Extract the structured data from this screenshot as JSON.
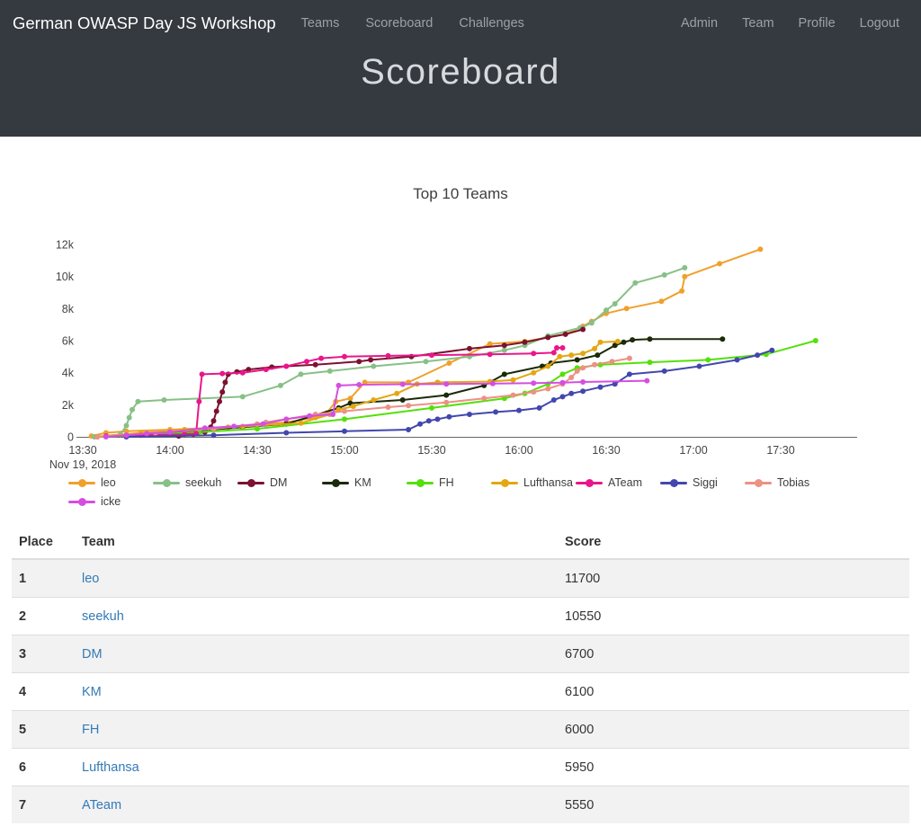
{
  "navbar": {
    "brand": "German OWASP Day JS Workshop",
    "left": [
      {
        "label": "Teams"
      },
      {
        "label": "Scoreboard"
      },
      {
        "label": "Challenges"
      }
    ],
    "right": [
      {
        "label": "Admin"
      },
      {
        "label": "Team"
      },
      {
        "label": "Profile"
      },
      {
        "label": "Logout"
      }
    ]
  },
  "header": {
    "title": "Scoreboard"
  },
  "chart_data": {
    "type": "line",
    "title": "Top 10 Teams",
    "xlabel": "",
    "ylabel": "",
    "x_axis": {
      "unit": "time of day, Nov 19 2018, minutes after 13:30",
      "tick_minutes": [
        0,
        30,
        60,
        90,
        120,
        150,
        180,
        210,
        240
      ],
      "tick_labels": [
        "13:30",
        "14:00",
        "14:30",
        "15:00",
        "15:30",
        "16:00",
        "16:30",
        "17:00",
        "17:30"
      ],
      "date_label": "Nov 19, 2018"
    },
    "y_axis": {
      "tick_values": [
        0,
        2000,
        4000,
        6000,
        8000,
        10000,
        12000
      ],
      "tick_labels": [
        "0",
        "2k",
        "4k",
        "6k",
        "8k",
        "10k",
        "12k"
      ],
      "max": 12000
    },
    "grid": false,
    "legend_position": "bottom",
    "series": [
      {
        "name": "leo",
        "color": "#f0a02c",
        "final_score": 11700,
        "points": [
          [
            3,
            50
          ],
          [
            8,
            250
          ],
          [
            15,
            350
          ],
          [
            30,
            450
          ],
          [
            50,
            600
          ],
          [
            70,
            900
          ],
          [
            80,
            1200
          ],
          [
            84,
            1500
          ],
          [
            87,
            2200
          ],
          [
            92,
            2400
          ],
          [
            97,
            3400
          ],
          [
            112,
            3400
          ],
          [
            126,
            4600
          ],
          [
            140,
            5800
          ],
          [
            152,
            5950
          ],
          [
            160,
            6200
          ],
          [
            166,
            6400
          ],
          [
            172,
            6900
          ],
          [
            175,
            7200
          ],
          [
            180,
            7700
          ],
          [
            187,
            8000
          ],
          [
            199,
            8450
          ],
          [
            206,
            9100
          ],
          [
            207,
            10000
          ],
          [
            219,
            10800
          ],
          [
            233,
            11700
          ]
        ]
      },
      {
        "name": "seekuh",
        "color": "#87c087",
        "final_score": 10550,
        "points": [
          [
            4,
            0
          ],
          [
            13,
            150
          ],
          [
            15,
            700
          ],
          [
            16,
            1200
          ],
          [
            17,
            1700
          ],
          [
            19,
            2200
          ],
          [
            28,
            2300
          ],
          [
            55,
            2500
          ],
          [
            68,
            3200
          ],
          [
            75,
            3900
          ],
          [
            85,
            4100
          ],
          [
            100,
            4400
          ],
          [
            118,
            4700
          ],
          [
            133,
            5000
          ],
          [
            145,
            5400
          ],
          [
            152,
            5700
          ],
          [
            160,
            6300
          ],
          [
            171,
            6800
          ],
          [
            175,
            7100
          ],
          [
            180,
            7900
          ],
          [
            183,
            8300
          ],
          [
            190,
            9600
          ],
          [
            200,
            10100
          ],
          [
            207,
            10550
          ]
        ]
      },
      {
        "name": "DM",
        "color": "#7c1230",
        "final_score": 6700,
        "points": [
          [
            33,
            50
          ],
          [
            38,
            150
          ],
          [
            42,
            300
          ],
          [
            44,
            600
          ],
          [
            45,
            1000
          ],
          [
            46,
            1600
          ],
          [
            47,
            2200
          ],
          [
            48,
            2800
          ],
          [
            49,
            3400
          ],
          [
            50,
            3900
          ],
          [
            53,
            4050
          ],
          [
            57,
            4200
          ],
          [
            65,
            4350
          ],
          [
            80,
            4500
          ],
          [
            95,
            4700
          ],
          [
            99,
            4800
          ],
          [
            113,
            5000
          ],
          [
            133,
            5500
          ],
          [
            145,
            5700
          ],
          [
            152,
            5900
          ],
          [
            160,
            6200
          ],
          [
            166,
            6400
          ],
          [
            172,
            6700
          ]
        ]
      },
      {
        "name": "KM",
        "color": "#1b2a08",
        "final_score": 6100,
        "points": [
          [
            5,
            0
          ],
          [
            25,
            200
          ],
          [
            40,
            400
          ],
          [
            55,
            600
          ],
          [
            70,
            800
          ],
          [
            88,
            1800
          ],
          [
            92,
            2100
          ],
          [
            110,
            2300
          ],
          [
            125,
            2600
          ],
          [
            138,
            3200
          ],
          [
            145,
            3900
          ],
          [
            158,
            4400
          ],
          [
            161,
            4600
          ],
          [
            170,
            4800
          ],
          [
            177,
            5100
          ],
          [
            183,
            5700
          ],
          [
            186,
            5900
          ],
          [
            189,
            6050
          ],
          [
            195,
            6100
          ],
          [
            220,
            6100
          ]
        ]
      },
      {
        "name": "FH",
        "color": "#54e00a",
        "final_score": 6000,
        "points": [
          [
            5,
            0
          ],
          [
            20,
            100
          ],
          [
            40,
            300
          ],
          [
            60,
            500
          ],
          [
            90,
            1100
          ],
          [
            120,
            1800
          ],
          [
            145,
            2400
          ],
          [
            152,
            2700
          ],
          [
            160,
            3300
          ],
          [
            165,
            3900
          ],
          [
            170,
            4300
          ],
          [
            178,
            4500
          ],
          [
            195,
            4650
          ],
          [
            215,
            4800
          ],
          [
            235,
            5150
          ],
          [
            252,
            6000
          ]
        ]
      },
      {
        "name": "Lufthansa",
        "color": "#e3a712",
        "final_score": 5950,
        "points": [
          [
            5,
            0
          ],
          [
            20,
            250
          ],
          [
            35,
            450
          ],
          [
            55,
            650
          ],
          [
            75,
            850
          ],
          [
            85,
            1400
          ],
          [
            88,
            1700
          ],
          [
            93,
            1900
          ],
          [
            100,
            2300
          ],
          [
            108,
            2700
          ],
          [
            115,
            3300
          ],
          [
            122,
            3400
          ],
          [
            140,
            3450
          ],
          [
            148,
            3550
          ],
          [
            155,
            4000
          ],
          [
            160,
            4400
          ],
          [
            164,
            5000
          ],
          [
            168,
            5100
          ],
          [
            172,
            5200
          ],
          [
            176,
            5500
          ],
          [
            178,
            5900
          ],
          [
            184,
            5950
          ]
        ]
      },
      {
        "name": "ATeam",
        "color": "#e9168a",
        "final_score": 5550,
        "points": [
          [
            8,
            50
          ],
          [
            20,
            100
          ],
          [
            35,
            150
          ],
          [
            39,
            200
          ],
          [
            40,
            2200
          ],
          [
            41,
            3900
          ],
          [
            48,
            3950
          ],
          [
            55,
            4000
          ],
          [
            63,
            4200
          ],
          [
            70,
            4400
          ],
          [
            77,
            4700
          ],
          [
            82,
            4900
          ],
          [
            90,
            5000
          ],
          [
            105,
            5050
          ],
          [
            120,
            5100
          ],
          [
            140,
            5150
          ],
          [
            155,
            5200
          ],
          [
            162,
            5250
          ],
          [
            163,
            5550
          ],
          [
            165,
            5550
          ]
        ]
      },
      {
        "name": "Siggi",
        "color": "#4247ad",
        "final_score": 5400,
        "points": [
          [
            15,
            0
          ],
          [
            45,
            100
          ],
          [
            70,
            250
          ],
          [
            90,
            350
          ],
          [
            112,
            450
          ],
          [
            116,
            800
          ],
          [
            119,
            1000
          ],
          [
            122,
            1100
          ],
          [
            126,
            1250
          ],
          [
            133,
            1400
          ],
          [
            142,
            1550
          ],
          [
            150,
            1650
          ],
          [
            157,
            1800
          ],
          [
            162,
            2300
          ],
          [
            165,
            2500
          ],
          [
            168,
            2700
          ],
          [
            172,
            2850
          ],
          [
            178,
            3100
          ],
          [
            183,
            3300
          ],
          [
            188,
            3900
          ],
          [
            200,
            4100
          ],
          [
            212,
            4400
          ],
          [
            225,
            4800
          ],
          [
            232,
            5100
          ],
          [
            237,
            5400
          ]
        ]
      },
      {
        "name": "Tobias",
        "color": "#ec9184",
        "final_score": 4900,
        "points": [
          [
            5,
            0
          ],
          [
            25,
            250
          ],
          [
            45,
            500
          ],
          [
            60,
            800
          ],
          [
            63,
            900
          ],
          [
            80,
            1400
          ],
          [
            90,
            1600
          ],
          [
            105,
            1850
          ],
          [
            112,
            1950
          ],
          [
            125,
            2150
          ],
          [
            138,
            2400
          ],
          [
            148,
            2600
          ],
          [
            155,
            2800
          ],
          [
            160,
            3000
          ],
          [
            165,
            3300
          ],
          [
            168,
            3700
          ],
          [
            170,
            4100
          ],
          [
            172,
            4300
          ],
          [
            176,
            4500
          ],
          [
            182,
            4700
          ],
          [
            188,
            4900
          ]
        ]
      },
      {
        "name": "icke",
        "color": "#d44fe0",
        "final_score": 3500,
        "points": [
          [
            8,
            0
          ],
          [
            15,
            100
          ],
          [
            22,
            200
          ],
          [
            30,
            300
          ],
          [
            42,
            550
          ],
          [
            52,
            650
          ],
          [
            62,
            800
          ],
          [
            70,
            1100
          ],
          [
            78,
            1300
          ],
          [
            86,
            1400
          ],
          [
            88,
            3200
          ],
          [
            95,
            3250
          ],
          [
            110,
            3280
          ],
          [
            125,
            3300
          ],
          [
            141,
            3320
          ],
          [
            155,
            3350
          ],
          [
            165,
            3380
          ],
          [
            172,
            3420
          ],
          [
            194,
            3500
          ]
        ]
      }
    ]
  },
  "table": {
    "columns": [
      "Place",
      "Team",
      "Score"
    ],
    "rows": [
      {
        "place": "1",
        "team": "leo",
        "score": "11700"
      },
      {
        "place": "2",
        "team": "seekuh",
        "score": "10550"
      },
      {
        "place": "3",
        "team": "DM",
        "score": "6700"
      },
      {
        "place": "4",
        "team": "KM",
        "score": "6100"
      },
      {
        "place": "5",
        "team": "FH",
        "score": "6000"
      },
      {
        "place": "6",
        "team": "Lufthansa",
        "score": "5950"
      },
      {
        "place": "7",
        "team": "ATeam",
        "score": "5550"
      }
    ]
  },
  "colors": {
    "header_bg": "#343a40",
    "link_blue": "#337ab7",
    "nav_link_grey": "#9aa1a8",
    "stripe_grey": "#f2f2f2"
  }
}
